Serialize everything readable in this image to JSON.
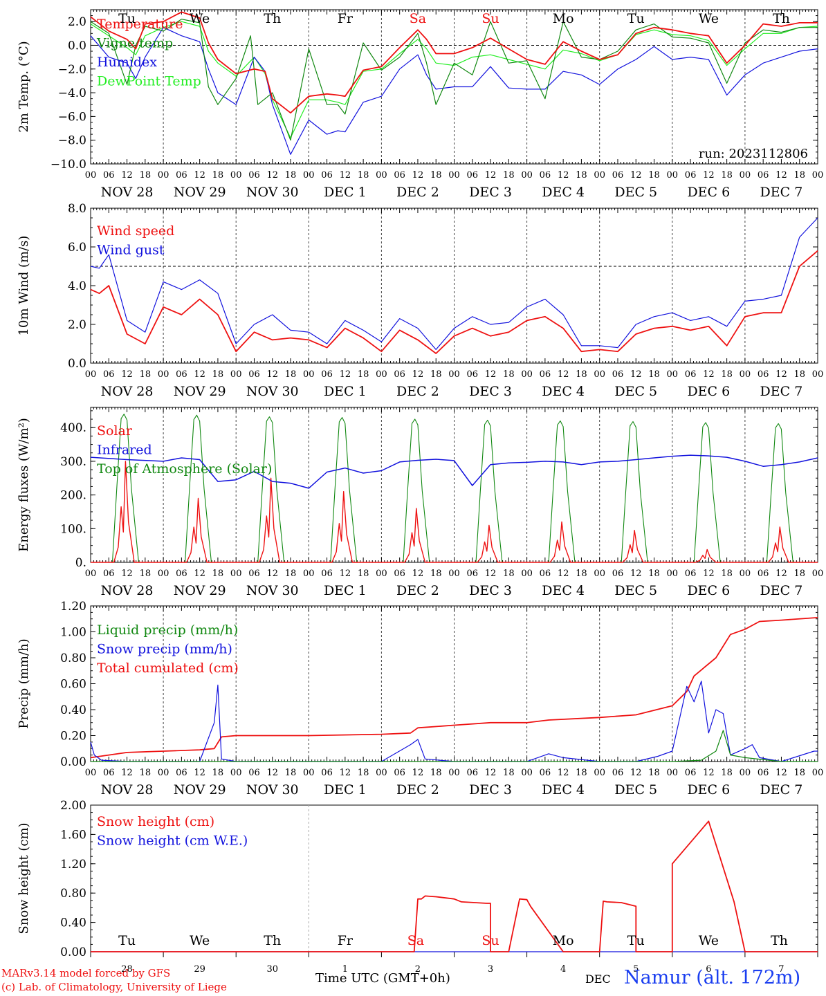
{
  "run_label": "run: 2023112806",
  "footer": {
    "model": "MARv3.14 model forced by GFS",
    "lab": "(c) Lab. of Climatology, University of Liege",
    "xlabel": "Time UTC (GMT+0h)",
    "month": "DEC",
    "station": "Namur (alt. 172m)"
  },
  "colors": {
    "red": "#ee1111",
    "green": "#118811",
    "blue": "#1111dd",
    "lightgreen": "#22ee22",
    "weekend": "#ee1111"
  },
  "hour_ticks": [
    "00",
    "06",
    "12",
    "18"
  ],
  "days": [
    "NOV 28",
    "NOV 29",
    "NOV 30",
    "DEC  1",
    "DEC  2",
    "DEC  3",
    "DEC  4",
    "DEC  5",
    "DEC  6",
    "DEC  7"
  ],
  "weekdays": [
    "Tu",
    "We",
    "Th",
    "Fr",
    "Sa",
    "Su",
    "Mo",
    "Tu",
    "We",
    "Th"
  ],
  "weekend_flags": [
    false,
    false,
    false,
    false,
    true,
    true,
    false,
    false,
    false,
    false
  ],
  "day_numbers": [
    "28",
    "29",
    "30",
    "1",
    "2",
    "3",
    "4",
    "5",
    "6",
    "7"
  ],
  "chart_data": [
    {
      "type": "line",
      "ylabel": "2m Temp. (°C)",
      "ylim": [
        -10,
        3
      ],
      "yticks": [
        "2.0",
        "0.0",
        "−2.0",
        "−4.0",
        "−6.0",
        "−8.0",
        "−10.0"
      ],
      "ytick_values": [
        2,
        0,
        -2,
        -4,
        -6,
        -8,
        -10
      ],
      "ref_line": 0,
      "legend": [
        "Temperature",
        "Vigne temp",
        "Humidex",
        "DewPoint Temp"
      ],
      "series": [
        {
          "name": "Temperature",
          "color": "red",
          "x": [
            0,
            0.25,
            0.5,
            0.62,
            0.75,
            1,
            1.25,
            1.5,
            1.62,
            1.75,
            2,
            2.25,
            2.4,
            2.5,
            2.75,
            3,
            3.25,
            3.4,
            3.5,
            3.75,
            4,
            4.25,
            4.5,
            4.62,
            4.75,
            5,
            5.25,
            5.5,
            5.75,
            6,
            6.25,
            6.5,
            6.75,
            7,
            7.25,
            7.5,
            7.75,
            8,
            8.25,
            8.5,
            8.75,
            9,
            9.25,
            9.5,
            9.75,
            10
          ],
          "values": [
            2.4,
            1.2,
            0.5,
            -0.3,
            1.8,
            2.0,
            2.8,
            2.3,
            0.2,
            -1.2,
            -2.4,
            -2.0,
            -2.2,
            -4.5,
            -5.7,
            -4.3,
            -4.1,
            -4.2,
            -4.3,
            -2.1,
            -1.8,
            -0.2,
            1.3,
            0.5,
            -0.7,
            -0.7,
            -0.2,
            0.6,
            -0.3,
            -1.2,
            -1.6,
            0.3,
            -0.5,
            -1.2,
            -0.8,
            1.0,
            1.5,
            1.3,
            1.0,
            0.8,
            -1.5,
            0.0,
            1.8,
            1.6,
            1.9,
            1.9
          ]
        },
        {
          "name": "Vigne temp",
          "color": "green",
          "x": [
            0,
            0.25,
            0.5,
            0.62,
            0.75,
            1,
            1.25,
            1.5,
            1.62,
            1.75,
            2,
            2.2,
            2.3,
            2.5,
            2.75,
            3,
            3.25,
            3.4,
            3.5,
            3.75,
            4,
            4.25,
            4.5,
            4.62,
            4.75,
            5,
            5.25,
            5.5,
            5.75,
            6,
            6.25,
            6.5,
            6.75,
            7,
            7.25,
            7.5,
            7.75,
            8,
            8.25,
            8.5,
            8.75,
            9,
            9.25,
            9.5,
            9.75,
            10
          ],
          "values": [
            2.0,
            1.0,
            -3.3,
            0.0,
            1.6,
            1.2,
            2.2,
            1.9,
            -3.5,
            -5.0,
            -2.8,
            0.8,
            -5.0,
            -4.0,
            -8.0,
            -0.3,
            -5.0,
            -5.0,
            -5.8,
            0.2,
            -2.1,
            -1.0,
            1.0,
            -1.5,
            -5.0,
            -1.5,
            -2.5,
            2.0,
            -1.5,
            -1.3,
            -4.5,
            2.0,
            -1.0,
            -1.2,
            -0.5,
            1.3,
            1.8,
            0.7,
            0.6,
            0.2,
            -3.2,
            0.2,
            1.3,
            1.1,
            1.5,
            1.5
          ]
        },
        {
          "name": "Humidex",
          "color": "blue",
          "x": [
            0,
            0.25,
            0.5,
            0.62,
            0.75,
            1,
            1.25,
            1.5,
            1.62,
            1.75,
            2,
            2.25,
            2.4,
            2.5,
            2.75,
            3,
            3.25,
            3.4,
            3.5,
            3.75,
            4,
            4.25,
            4.5,
            4.62,
            4.75,
            5,
            5.25,
            5.5,
            5.75,
            6,
            6.25,
            6.5,
            6.75,
            7,
            7.25,
            7.5,
            7.75,
            8,
            8.25,
            8.5,
            8.75,
            9,
            9.25,
            9.5,
            9.75,
            10
          ],
          "values": [
            0.8,
            -1.0,
            -1.5,
            -2.8,
            -1.0,
            1.5,
            0.8,
            0.3,
            -2.0,
            -4.0,
            -5.0,
            -1.0,
            -2.2,
            -5.0,
            -9.2,
            -6.3,
            -7.5,
            -7.2,
            -7.3,
            -4.8,
            -4.3,
            -2.0,
            -0.8,
            -2.5,
            -3.7,
            -3.5,
            -3.5,
            -1.8,
            -3.6,
            -3.7,
            -3.7,
            -2.2,
            -2.5,
            -3.3,
            -2.0,
            -1.2,
            -0.1,
            -1.2,
            -1.0,
            -1.2,
            -4.2,
            -2.5,
            -1.5,
            -1.0,
            -0.5,
            -0.3
          ]
        },
        {
          "name": "DewPoint Temp",
          "color": "lightgreen",
          "x": [
            0,
            0.25,
            0.5,
            0.62,
            0.75,
            1,
            1.25,
            1.5,
            1.62,
            1.75,
            2,
            2.25,
            2.4,
            2.5,
            2.75,
            3,
            3.25,
            3.4,
            3.5,
            3.75,
            4,
            4.25,
            4.5,
            4.62,
            4.75,
            5,
            5.25,
            5.5,
            5.75,
            6,
            6.25,
            6.5,
            6.75,
            7,
            7.25,
            7.5,
            7.75,
            8,
            8.25,
            8.5,
            8.75,
            9,
            9.25,
            9.5,
            9.75,
            10
          ],
          "values": [
            1.8,
            0.8,
            -0.2,
            -0.8,
            0.8,
            1.5,
            2.0,
            1.6,
            -0.5,
            -1.5,
            -2.6,
            -1.0,
            -2.4,
            -4.6,
            -7.8,
            -4.6,
            -4.6,
            -4.8,
            -5.0,
            -2.2,
            -2.0,
            -0.7,
            0.5,
            -0.3,
            -1.5,
            -1.7,
            -1.0,
            -0.8,
            -1.2,
            -1.6,
            -2.0,
            -0.4,
            -0.7,
            -1.3,
            -0.8,
            0.9,
            1.3,
            0.9,
            0.8,
            0.4,
            -1.7,
            -0.3,
            1.0,
            1.0,
            1.5,
            1.6
          ]
        }
      ]
    },
    {
      "type": "line",
      "ylabel": "10m Wind (m/s)",
      "ylim": [
        0,
        8
      ],
      "yticks": [
        "8.0",
        "6.0",
        "4.0",
        "2.0",
        "0.0"
      ],
      "ytick_values": [
        8,
        6,
        4,
        2,
        0
      ],
      "ref_line": 5,
      "legend": [
        "Wind speed",
        "Wind gust"
      ],
      "series": [
        {
          "name": "Wind speed",
          "color": "red",
          "x": [
            0,
            0.12,
            0.25,
            0.5,
            0.75,
            1,
            1.25,
            1.5,
            1.75,
            2,
            2.25,
            2.5,
            2.75,
            3,
            3.25,
            3.5,
            3.75,
            4,
            4.25,
            4.5,
            4.75,
            5,
            5.25,
            5.5,
            5.75,
            6,
            6.25,
            6.5,
            6.75,
            7,
            7.25,
            7.5,
            7.75,
            8,
            8.25,
            8.5,
            8.75,
            9,
            9.25,
            9.5,
            9.75,
            10
          ],
          "values": [
            3.8,
            3.6,
            4.0,
            1.5,
            1.0,
            2.9,
            2.5,
            3.3,
            2.5,
            0.6,
            1.6,
            1.2,
            1.3,
            1.2,
            0.8,
            1.8,
            1.3,
            0.6,
            1.7,
            1.2,
            0.5,
            1.4,
            1.8,
            1.4,
            1.6,
            2.2,
            2.4,
            1.8,
            0.6,
            0.7,
            0.6,
            1.5,
            1.8,
            1.9,
            1.7,
            1.9,
            0.9,
            2.4,
            2.6,
            2.6,
            5.0,
            5.8
          ]
        },
        {
          "name": "Wind gust",
          "color": "blue",
          "x": [
            0,
            0.12,
            0.25,
            0.5,
            0.75,
            1,
            1.25,
            1.5,
            1.75,
            2,
            2.25,
            2.5,
            2.75,
            3,
            3.25,
            3.5,
            3.75,
            4,
            4.25,
            4.5,
            4.75,
            5,
            5.25,
            5.5,
            5.75,
            6,
            6.25,
            6.5,
            6.75,
            7,
            7.25,
            7.5,
            7.75,
            8,
            8.25,
            8.5,
            8.75,
            9,
            9.25,
            9.5,
            9.75,
            10
          ],
          "values": [
            5.0,
            4.9,
            5.6,
            2.2,
            1.6,
            4.2,
            3.8,
            4.3,
            3.6,
            1.0,
            2.0,
            2.5,
            1.7,
            1.6,
            1.0,
            2.2,
            1.7,
            1.1,
            2.3,
            1.8,
            0.7,
            1.8,
            2.4,
            2.0,
            2.1,
            2.9,
            3.3,
            2.5,
            0.9,
            0.9,
            0.8,
            2.0,
            2.4,
            2.6,
            2.2,
            2.4,
            1.9,
            3.2,
            3.3,
            3.5,
            6.5,
            7.5
          ]
        }
      ]
    },
    {
      "type": "line",
      "ylabel": "Energy fluxes (W/m²)",
      "ylim": [
        0,
        460
      ],
      "yticks": [
        "400.",
        "300.",
        "200.",
        "100.",
        "0."
      ],
      "ytick_values": [
        400,
        300,
        200,
        100,
        0
      ],
      "legend": [
        "Solar",
        "Infrared",
        "Top of Atmosphere (Solar)"
      ],
      "toa_peaks": [
        440,
        437,
        432,
        430,
        425,
        422,
        420,
        418,
        415,
        412
      ],
      "solar_peaks": [
        300,
        190,
        250,
        210,
        160,
        110,
        120,
        95,
        38,
        105
      ],
      "infrared": {
        "x": [
          0,
          0.5,
          1,
          1.25,
          1.5,
          1.75,
          2,
          2.25,
          2.5,
          2.75,
          3,
          3.25,
          3.5,
          3.75,
          4,
          4.25,
          4.5,
          4.75,
          5,
          5.25,
          5.5,
          5.75,
          6,
          6.25,
          6.5,
          6.75,
          7,
          7.25,
          7.5,
          7.75,
          8,
          8.25,
          8.5,
          8.75,
          9,
          9.25,
          9.5,
          9.75,
          10
        ],
        "values": [
          312,
          305,
          300,
          310,
          305,
          240,
          245,
          270,
          240,
          235,
          220,
          268,
          280,
          265,
          272,
          298,
          303,
          306,
          302,
          228,
          290,
          295,
          297,
          300,
          298,
          290,
          298,
          300,
          305,
          310,
          315,
          318,
          316,
          312,
          300,
          285,
          290,
          298,
          310
        ]
      },
      "series": [
        {
          "name": "Solar",
          "color": "red"
        },
        {
          "name": "Infrared",
          "color": "blue"
        },
        {
          "name": "Top of Atmosphere (Solar)",
          "color": "green"
        }
      ]
    },
    {
      "type": "line",
      "ylabel": "Precip (mm/h)",
      "ylim": [
        0,
        1.2
      ],
      "yticks": [
        "1.20",
        "1.00",
        "0.80",
        "0.60",
        "0.40",
        "0.20",
        "0.00"
      ],
      "ytick_values": [
        1.2,
        1.0,
        0.8,
        0.6,
        0.4,
        0.2,
        0.0
      ],
      "legend": [
        "Liquid precip (mm/h)",
        "Snow precip (mm/h)",
        "Total cumulated (cm)"
      ],
      "series": [
        {
          "name": "Liquid precip (mm/h)",
          "color": "green",
          "x": [
            0,
            8.0,
            8.4,
            8.6,
            8.7,
            8.8,
            9.0,
            9.5,
            10
          ],
          "values": [
            0,
            0,
            0.01,
            0.08,
            0.24,
            0.05,
            0.03,
            0,
            0
          ]
        },
        {
          "name": "Snow precip (mm/h)",
          "color": "blue",
          "x": [
            0,
            0.05,
            0.15,
            0.5,
            1.0,
            1.5,
            1.7,
            1.75,
            1.8,
            2.0,
            3.0,
            4.0,
            4.4,
            4.5,
            4.6,
            5.0,
            6.0,
            6.3,
            6.5,
            7.0,
            7.5,
            7.8,
            8.0,
            8.2,
            8.3,
            8.4,
            8.5,
            8.6,
            8.7,
            8.8,
            9.0,
            9.1,
            9.2,
            9.5,
            9.95,
            10
          ],
          "values": [
            0.15,
            0.05,
            0.01,
            0,
            0,
            0,
            0.3,
            0.59,
            0.02,
            0,
            0,
            0,
            0.13,
            0.17,
            0.02,
            0,
            0,
            0.06,
            0.03,
            0,
            0,
            0.04,
            0.08,
            0.58,
            0.46,
            0.62,
            0.22,
            0.4,
            0.37,
            0.05,
            0.1,
            0.13,
            0.03,
            0,
            0.08,
            0.08
          ]
        },
        {
          "name": "Total cumulated (cm)",
          "color": "red",
          "x": [
            0,
            0.5,
            1.0,
            1.5,
            1.7,
            1.8,
            2.0,
            3.0,
            4.0,
            4.4,
            4.5,
            5.0,
            5.5,
            6.0,
            6.3,
            7.0,
            7.5,
            8.0,
            8.2,
            8.3,
            8.6,
            8.8,
            9.0,
            9.2,
            9.5,
            10
          ],
          "values": [
            0.03,
            0.07,
            0.08,
            0.09,
            0.1,
            0.19,
            0.2,
            0.2,
            0.21,
            0.22,
            0.26,
            0.28,
            0.3,
            0.3,
            0.32,
            0.34,
            0.36,
            0.43,
            0.54,
            0.66,
            0.8,
            0.98,
            1.02,
            1.08,
            1.09,
            1.11
          ]
        }
      ]
    },
    {
      "type": "line",
      "ylabel": "Snow height (cm)",
      "ylim": [
        0,
        2
      ],
      "yticks": [
        "2.00",
        "1.60",
        "1.20",
        "0.80",
        "0.40",
        "0.00"
      ],
      "ytick_values": [
        2.0,
        1.6,
        1.2,
        0.8,
        0.4,
        0.0
      ],
      "legend": [
        "Snow height (cm)",
        "Snow height (cm W.E.)"
      ],
      "series": [
        {
          "name": "Snow height (cm)",
          "color": "red",
          "x": [
            0,
            4.45,
            4.5,
            4.55,
            4.6,
            4.75,
            5.0,
            5.1,
            5.45,
            5.5,
            5.5,
            5.75,
            5.9,
            6.0,
            6.05,
            6.5,
            7.0,
            7.05,
            7.1,
            7.3,
            7.5,
            7.5,
            8.0,
            8.0,
            8.5,
            8.85,
            9.0,
            10
          ],
          "values": [
            0,
            0,
            0.72,
            0.72,
            0.76,
            0.75,
            0.72,
            0.68,
            0.66,
            0.66,
            0,
            0,
            0.72,
            0.71,
            0.62,
            0,
            0,
            0.69,
            0.68,
            0.67,
            0.62,
            0,
            0,
            1.2,
            1.78,
            0.68,
            0,
            0
          ]
        },
        {
          "name": "Snow height (cm W.E.)",
          "color": "blue",
          "x": [
            0,
            10
          ],
          "values": [
            0,
            0
          ]
        }
      ]
    }
  ]
}
